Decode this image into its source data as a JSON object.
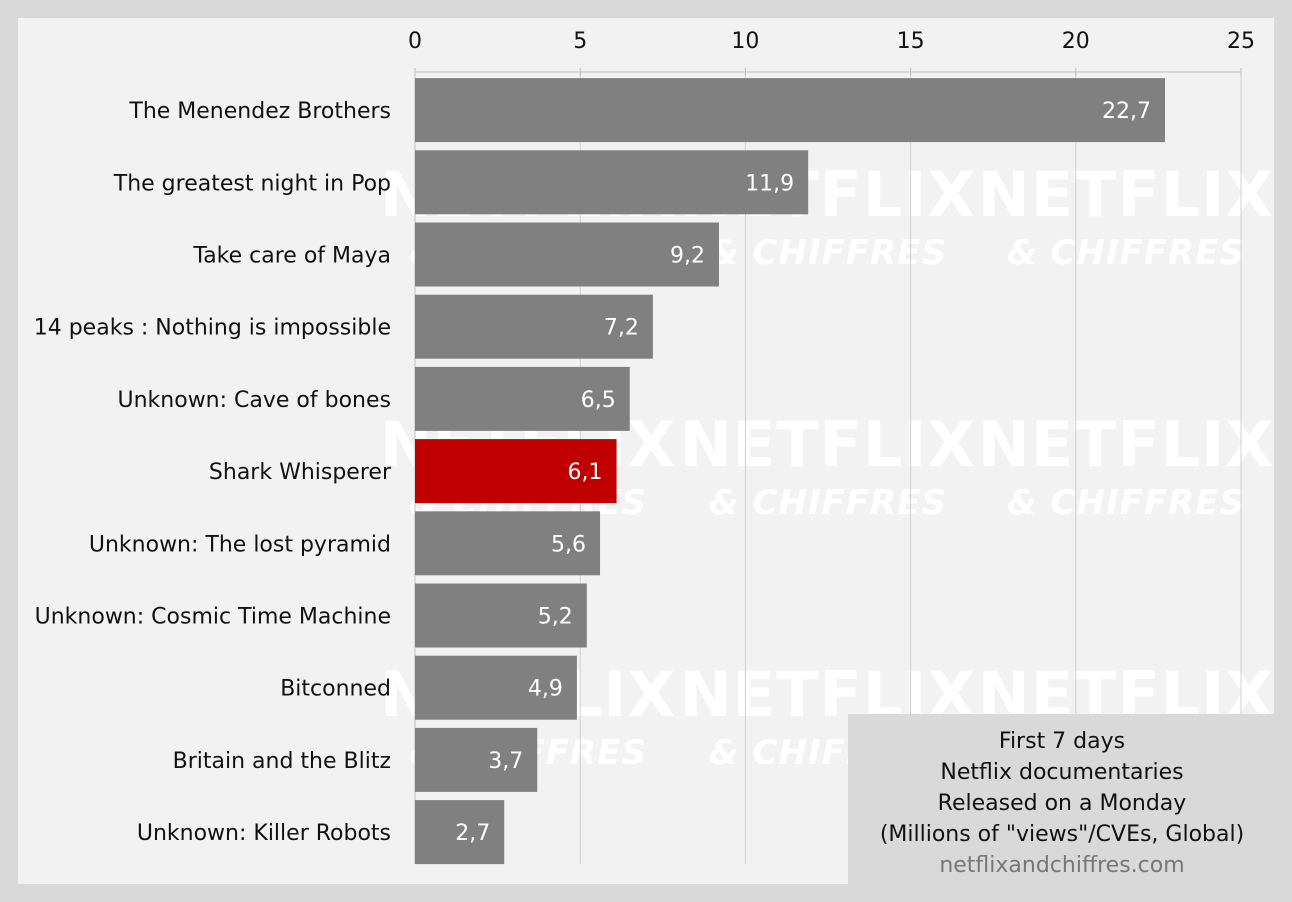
{
  "chart_data": {
    "type": "bar",
    "orientation": "horizontal",
    "categories": [
      "The Menendez Brothers",
      "The greatest night in Pop",
      "Take care of Maya",
      "14 peaks : Nothing is impossible",
      "Unknown: Cave of bones",
      "Shark Whisperer",
      "Unknown: The lost pyramid",
      "Unknown: Cosmic Time Machine",
      "Bitconned",
      "Britain and the Blitz",
      "Unknown: Killer Robots"
    ],
    "values": [
      22.7,
      11.9,
      9.2,
      7.2,
      6.5,
      6.1,
      5.6,
      5.2,
      4.9,
      3.7,
      2.7
    ],
    "value_labels": [
      "22,7",
      "11,9",
      "9,2",
      "7,2",
      "6,5",
      "6,1",
      "5,6",
      "5,2",
      "4,9",
      "3,7",
      "2,7"
    ],
    "highlight_index": 5,
    "xlim": [
      0,
      25
    ],
    "xticks": [
      0,
      5,
      10,
      15,
      20,
      25
    ],
    "x_axis_position": "top",
    "grid": true,
    "colors": {
      "bar": "#808080",
      "highlight": "#c00000",
      "grid": "#d0d0d0",
      "background": "#f2f2f2"
    },
    "watermark": {
      "line1": "NETFLIX",
      "line2": "& CHIFFRES"
    }
  },
  "info": {
    "lines": [
      "First 7 days",
      "Netflix documentaries",
      "Released on a Monday",
      "(Millions of \"views\"/CVEs, Global)"
    ],
    "source": "netflixandchiffres.com"
  }
}
